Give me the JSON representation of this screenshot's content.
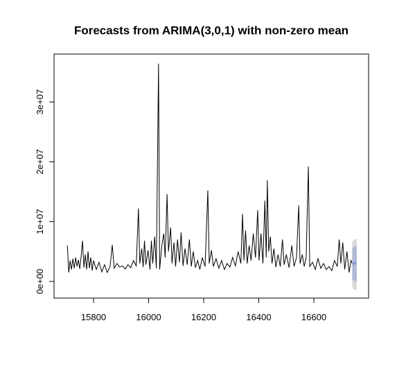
{
  "chart_data": {
    "type": "line",
    "title": "Forecasts from ARIMA(3,0,1) with non-zero mean",
    "x": [
      15705,
      15710,
      15715,
      15720,
      15725,
      15730,
      15735,
      15740,
      15745,
      15750,
      15755,
      15760,
      15765,
      15770,
      15775,
      15780,
      15785,
      15790,
      15795,
      15800,
      15810,
      15820,
      15830,
      15840,
      15850,
      15860,
      15868,
      15875,
      15885,
      15895,
      15905,
      15915,
      15925,
      15935,
      15945,
      15955,
      15963,
      15968,
      15975,
      15980,
      15985,
      15990,
      15998,
      16005,
      16010,
      16015,
      16022,
      16028,
      16036,
      16040,
      16048,
      16055,
      16060,
      16067,
      16072,
      16080,
      16085,
      16092,
      16098,
      16105,
      16112,
      16118,
      16125,
      16132,
      16140,
      16148,
      16155,
      16162,
      16170,
      16178,
      16186,
      16195,
      16205,
      16215,
      16220,
      16228,
      16235,
      16245,
      16255,
      16265,
      16275,
      16285,
      16295,
      16305,
      16315,
      16325,
      16335,
      16341,
      16346,
      16352,
      16358,
      16365,
      16372,
      16380,
      16388,
      16396,
      16401,
      16408,
      16415,
      16422,
      16427,
      16431,
      16436,
      16442,
      16448,
      16455,
      16462,
      16470,
      16478,
      16486,
      16492,
      16500,
      16510,
      16520,
      16528,
      16537,
      16545,
      16550,
      16558,
      16565,
      16572,
      16580,
      16585,
      16595,
      16605,
      16615,
      16625,
      16635,
      16645,
      16655,
      16665,
      16675,
      16685,
      16692,
      16698,
      16705,
      16712,
      16720,
      16728,
      16735,
      16742
    ],
    "series": [
      {
        "color": "#000000",
        "values": [
          6000000.0,
          1500000.0,
          3500000.0,
          2000000.0,
          3800000.0,
          2200000.0,
          4000000.0,
          2500000.0,
          3600000.0,
          2100000.0,
          4200000.0,
          6800000.0,
          2300000.0,
          4500000.0,
          2000000.0,
          5000000.0,
          2200000.0,
          4000000.0,
          1800000.0,
          3500000.0,
          2000000.0,
          3200000.0,
          1600000.0,
          2800000.0,
          1500000.0,
          2500000.0,
          6100000.0,
          2200000.0,
          3000000.0,
          2400000.0,
          2600000.0,
          2100000.0,
          2800000.0,
          2300000.0,
          3500000.0,
          2600000.0,
          12200000.0,
          3000000.0,
          5500000.0,
          2400000.0,
          6800000.0,
          2800000.0,
          5200000.0,
          2000000.0,
          6800000.0,
          3000000.0,
          7500000.0,
          2200000.0,
          36400000.0,
          2000000.0,
          6000000.0,
          8000000.0,
          4000000.0,
          14600000.0,
          5000000.0,
          9000000.0,
          3000000.0,
          6500000.0,
          2500000.0,
          7000000.0,
          3200000.0,
          8200000.0,
          2600000.0,
          5500000.0,
          2800000.0,
          7000000.0,
          2500000.0,
          5000000.0,
          2300000.0,
          3500000.0,
          2000000.0,
          4000000.0,
          2500000.0,
          15200000.0,
          3000000.0,
          5200000.0,
          2500000.0,
          3800000.0,
          2200000.0,
          3500000.0,
          2000000.0,
          3000000.0,
          2400000.0,
          4000000.0,
          2600000.0,
          5000000.0,
          3000000.0,
          11300000.0,
          3500000.0,
          8500000.0,
          3000000.0,
          6000000.0,
          3500000.0,
          8000000.0,
          4000000.0,
          11900000.0,
          3500000.0,
          8000000.0,
          3000000.0,
          13500000.0,
          4000000.0,
          16900000.0,
          5000000.0,
          7500000.0,
          3000000.0,
          5500000.0,
          2400000.0,
          4500000.0,
          2500000.0,
          7000000.0,
          2800000.0,
          4500000.0,
          2300000.0,
          6000000.0,
          2500000.0,
          4000000.0,
          12700000.0,
          3000000.0,
          4500000.0,
          2500000.0,
          4000000.0,
          19200000.0,
          2500000.0,
          3200000.0,
          2000000.0,
          3800000.0,
          2200000.0,
          3000000.0,
          2000000.0,
          2500000.0,
          1800000.0,
          3500000.0,
          2500000.0,
          7000000.0,
          3000000.0,
          6500000.0,
          2000000.0,
          5000000.0,
          1500000.0,
          3500000.0,
          2800000.0
        ]
      }
    ],
    "forecast": {
      "x": [
        16743,
        16746,
        16749,
        16752
      ],
      "mean": [
        2800000.0,
        3000000.0,
        3100000.0,
        3100000.0
      ],
      "lo80": [
        400000.0,
        300000.0,
        200000.0,
        200000.0
      ],
      "hi80": [
        5200000.0,
        5600000.0,
        5700000.0,
        5700000.0
      ],
      "lo95": [
        -900000.0,
        -1100000.0,
        -1200000.0,
        -1200000.0
      ],
      "hi95": [
        6500000.0,
        6800000.0,
        6900000.0,
        6900000.0
      ],
      "mean_color": "#5b8fd9",
      "band80_color": "#b1b9d6",
      "band95_color": "#d9d9d9"
    },
    "xlim": [
      15656.6,
      16798.7
    ],
    "ylim": [
      -2780000,
      38000000
    ],
    "xticks": [
      15800,
      16000,
      16200,
      16400,
      16600
    ],
    "yticks": [
      {
        "value": 0,
        "label": "0e+00"
      },
      {
        "value": 10000000,
        "label": "1e+07"
      },
      {
        "value": 20000000,
        "label": "2e+07"
      },
      {
        "value": 30000000,
        "label": "3e+07"
      }
    ]
  }
}
